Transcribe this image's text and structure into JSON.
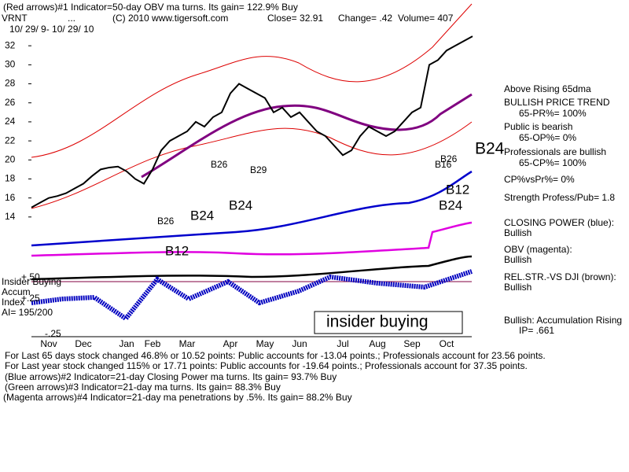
{
  "chart_data": {
    "type": "line",
    "title": "(Red arrows)#1 Indicator=50-day OBV ma turns. Its gain= 122.9% Buy",
    "categories": [
      null,
      null,
      "Nov",
      null,
      null,
      null,
      "Dec",
      null,
      null,
      null,
      null,
      "Jan",
      null,
      null,
      "Feb",
      null,
      null,
      null,
      "Mar",
      null,
      null,
      null,
      null,
      "Apr",
      null,
      null,
      null,
      "May",
      null,
      null,
      null,
      "Jun",
      null,
      null,
      null,
      null,
      "Jul",
      null,
      null,
      null,
      "Aug",
      null,
      null,
      null,
      "Sep",
      null,
      null,
      null,
      "Oct",
      null,
      null,
      null
    ],
    "series": [
      {
        "name": "VRNT",
        "color": "#000000",
        "values": [
          15,
          15.5,
          16,
          16.2,
          16.5,
          17,
          17.5,
          18.3,
          19,
          19.2,
          19.3,
          18.8,
          18,
          17.5,
          19,
          21,
          22,
          22.5,
          23,
          24,
          23.5,
          24.5,
          25,
          27,
          28,
          27.5,
          27,
          26.5,
          25,
          25.5,
          24.5,
          25,
          24,
          23,
          22.5,
          21.5,
          20.5,
          21,
          22.5,
          23.5,
          23,
          22.5,
          23,
          24,
          25,
          25.5,
          30,
          30.5,
          31.5,
          32,
          32.5,
          33
        ]
      }
    ],
    "ylim": [
      12,
      34
    ],
    "yticks": [
      14,
      16,
      18,
      20,
      22,
      24,
      26,
      28,
      30,
      32
    ],
    "annotations": [
      "VRNT",
      "...",
      "(C) 2010 www.tigersoft.com",
      "Close=  32.91",
      "Change= .42",
      "Volume= 407",
      "10/ 29/ 9- 10/ 29/ 10",
      "Above Rising 65dma",
      "BULLISH PRICE TREND",
      "65-PR%= 100%",
      "Public is bearish",
      "65-OP%= 0%",
      "B24",
      "Professionals are bullish",
      "65-CP%= 100%",
      "CP%vsPr%=  0%",
      "Strength Profess/Pub= 1.8",
      "CLOSING POWER (blue):",
      "Bullish",
      "OBV (magenta):",
      "Bullish",
      "REL.STR.-VS DJI (brown):",
      "Bullish",
      "Bullish: Accumulation Rising",
      "IP=  .661",
      "B26",
      "B29",
      "B26",
      "B24",
      "B24",
      "B12",
      "B16",
      "B26",
      "B12",
      "B24",
      "Insider Buying",
      "Accum",
      "Index",
      "AI= 195/200",
      "+.50",
      "+.25",
      "-.25",
      "insider buying",
      "For Last 65 days stock changed  46.8% or  10.52 points:  Public accounts for -13.04 points.;  Professionals account for  23.56 points.",
      "For Last year stock changed  115% or  17.71 points:  Public accounts for -19.64 points.;  Professionals account for  37.35 points.",
      "(Blue arrows)#2 Indicator=21-day Closing Power ma turns. Its gain= 93.7% Buy",
      "(Green arrows)#3 Indicator=21-day ma turns. Its gain= 88.3% Buy",
      "(Magenta arrows)#4 Indicator=21-day ma penetrations by .5%. Its gain= 88.2% Buy"
    ]
  }
}
